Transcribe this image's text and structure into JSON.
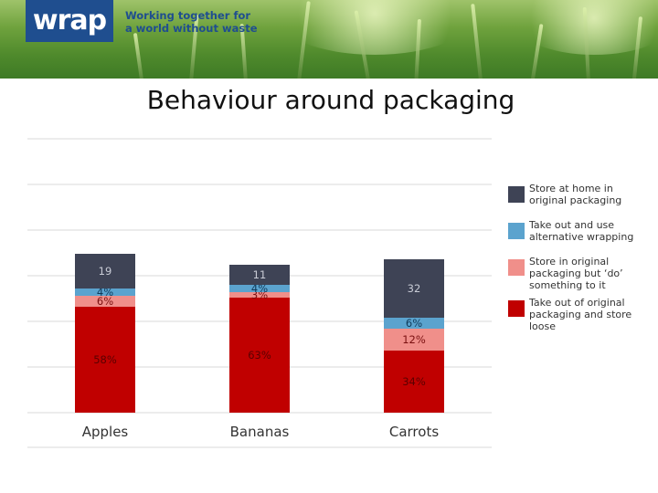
{
  "banner": {
    "logo": "wrap",
    "tagline_line1": "Working together for",
    "tagline_line2": "a world without waste"
  },
  "colors": {
    "store_original": "#3e4355",
    "alt_wrapping": "#5ba3ce",
    "do_something": "#f08f8a",
    "store_loose": "#c00000",
    "logo_blue": "#1f4e8f"
  },
  "chart_data": {
    "type": "bar",
    "stacked": true,
    "title": "Behaviour around packaging",
    "xlabel": "",
    "ylabel": "",
    "ylim": [
      0,
      105
    ],
    "grid": true,
    "legend_position": "right",
    "categories": [
      "Apples",
      "Bananas",
      "Carrots"
    ],
    "series": [
      {
        "name": "Take out of original packaging and store loose",
        "color": "#c00000",
        "values": [
          58,
          63,
          34
        ],
        "labels": [
          "58%",
          "63%",
          "34%"
        ]
      },
      {
        "name": "Store in original packaging but ‘do’ something to it",
        "color": "#f08f8a",
        "values": [
          6,
          3,
          12
        ],
        "labels": [
          "6%",
          "3%",
          "12%"
        ]
      },
      {
        "name": "Take out and use alternative wrapping",
        "color": "#5ba3ce",
        "values": [
          4,
          4,
          6
        ],
        "labels": [
          "4%",
          "4%",
          "6%"
        ]
      },
      {
        "name": "Store at home in original packaging",
        "color": "#3e4355",
        "values": [
          19,
          11,
          32
        ],
        "labels": [
          "19",
          "11",
          "32"
        ]
      }
    ]
  }
}
